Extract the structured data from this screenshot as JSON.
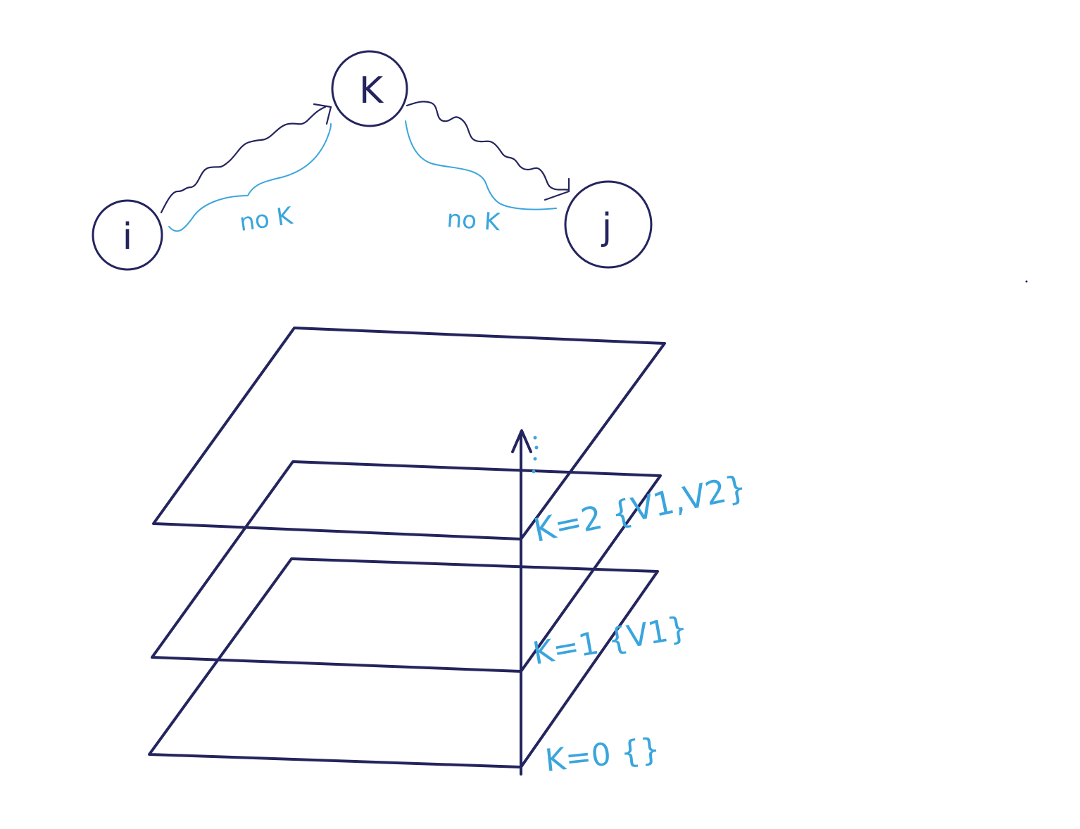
{
  "graph": {
    "nodes": [
      {
        "id": "i",
        "label": "i"
      },
      {
        "id": "k",
        "label": "K"
      },
      {
        "id": "j",
        "label": "j"
      }
    ],
    "edge_labels": {
      "left": "no K",
      "right": "no K"
    }
  },
  "layers": {
    "labels": [
      {
        "k": 2,
        "text": "K=2 {V1,V2}"
      },
      {
        "k": 1,
        "text": "K=1 {V1}"
      },
      {
        "k": 0,
        "text": "K=0 {}"
      }
    ]
  },
  "colors": {
    "ink": "#24245e",
    "annotation": "#3aa5dd",
    "background": "#ffffff"
  }
}
